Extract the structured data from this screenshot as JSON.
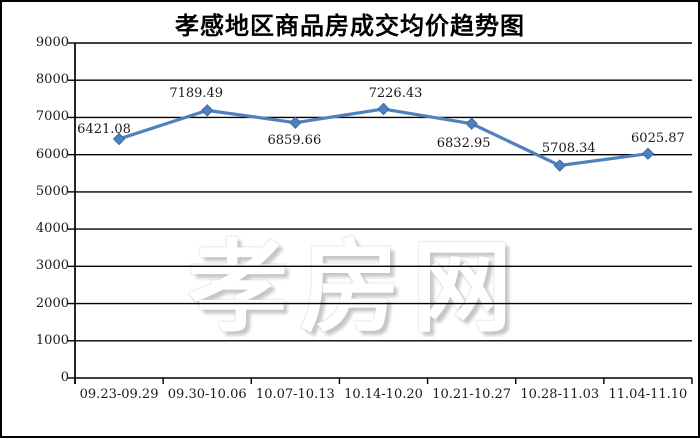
{
  "title": "孝感地区商品房成交均价趋势图",
  "watermark": {
    "text": "孝房网"
  },
  "chart_data": {
    "type": "line",
    "title": "孝感地区商品房成交均价趋势图",
    "categories": [
      "09.23-09.29",
      "09.30-10.06",
      "10.07-10.13",
      "10.14-10.20",
      "10.21-10.27",
      "10.28-11.03",
      "11.04-11.10"
    ],
    "values": [
      6421.08,
      7189.49,
      6859.66,
      7226.43,
      6832.95,
      5708.34,
      6025.87
    ],
    "data_labels": [
      "6421.08",
      "7189.49",
      "6859.66",
      "7226.43",
      "6832.95",
      "5708.34",
      "6025.87"
    ],
    "label_placements": [
      "above-left",
      "above",
      "below",
      "above-right",
      "below",
      "above-right",
      "above-right"
    ],
    "xlabel": "",
    "ylabel": "",
    "ylim": [
      0,
      9000
    ],
    "y_tick_interval": 1000,
    "y_tick_labels": [
      "0",
      "1000",
      "2000",
      "3000",
      "4000",
      "5000",
      "6000",
      "7000",
      "8000",
      "9000"
    ],
    "grid": "horizontal",
    "legend": "none",
    "line_color": "#4F81BD",
    "marker": "diamond",
    "marker_edge_color": "#3A6BA5",
    "grid_color": "#000000",
    "text_color": "#1a1a1a"
  }
}
